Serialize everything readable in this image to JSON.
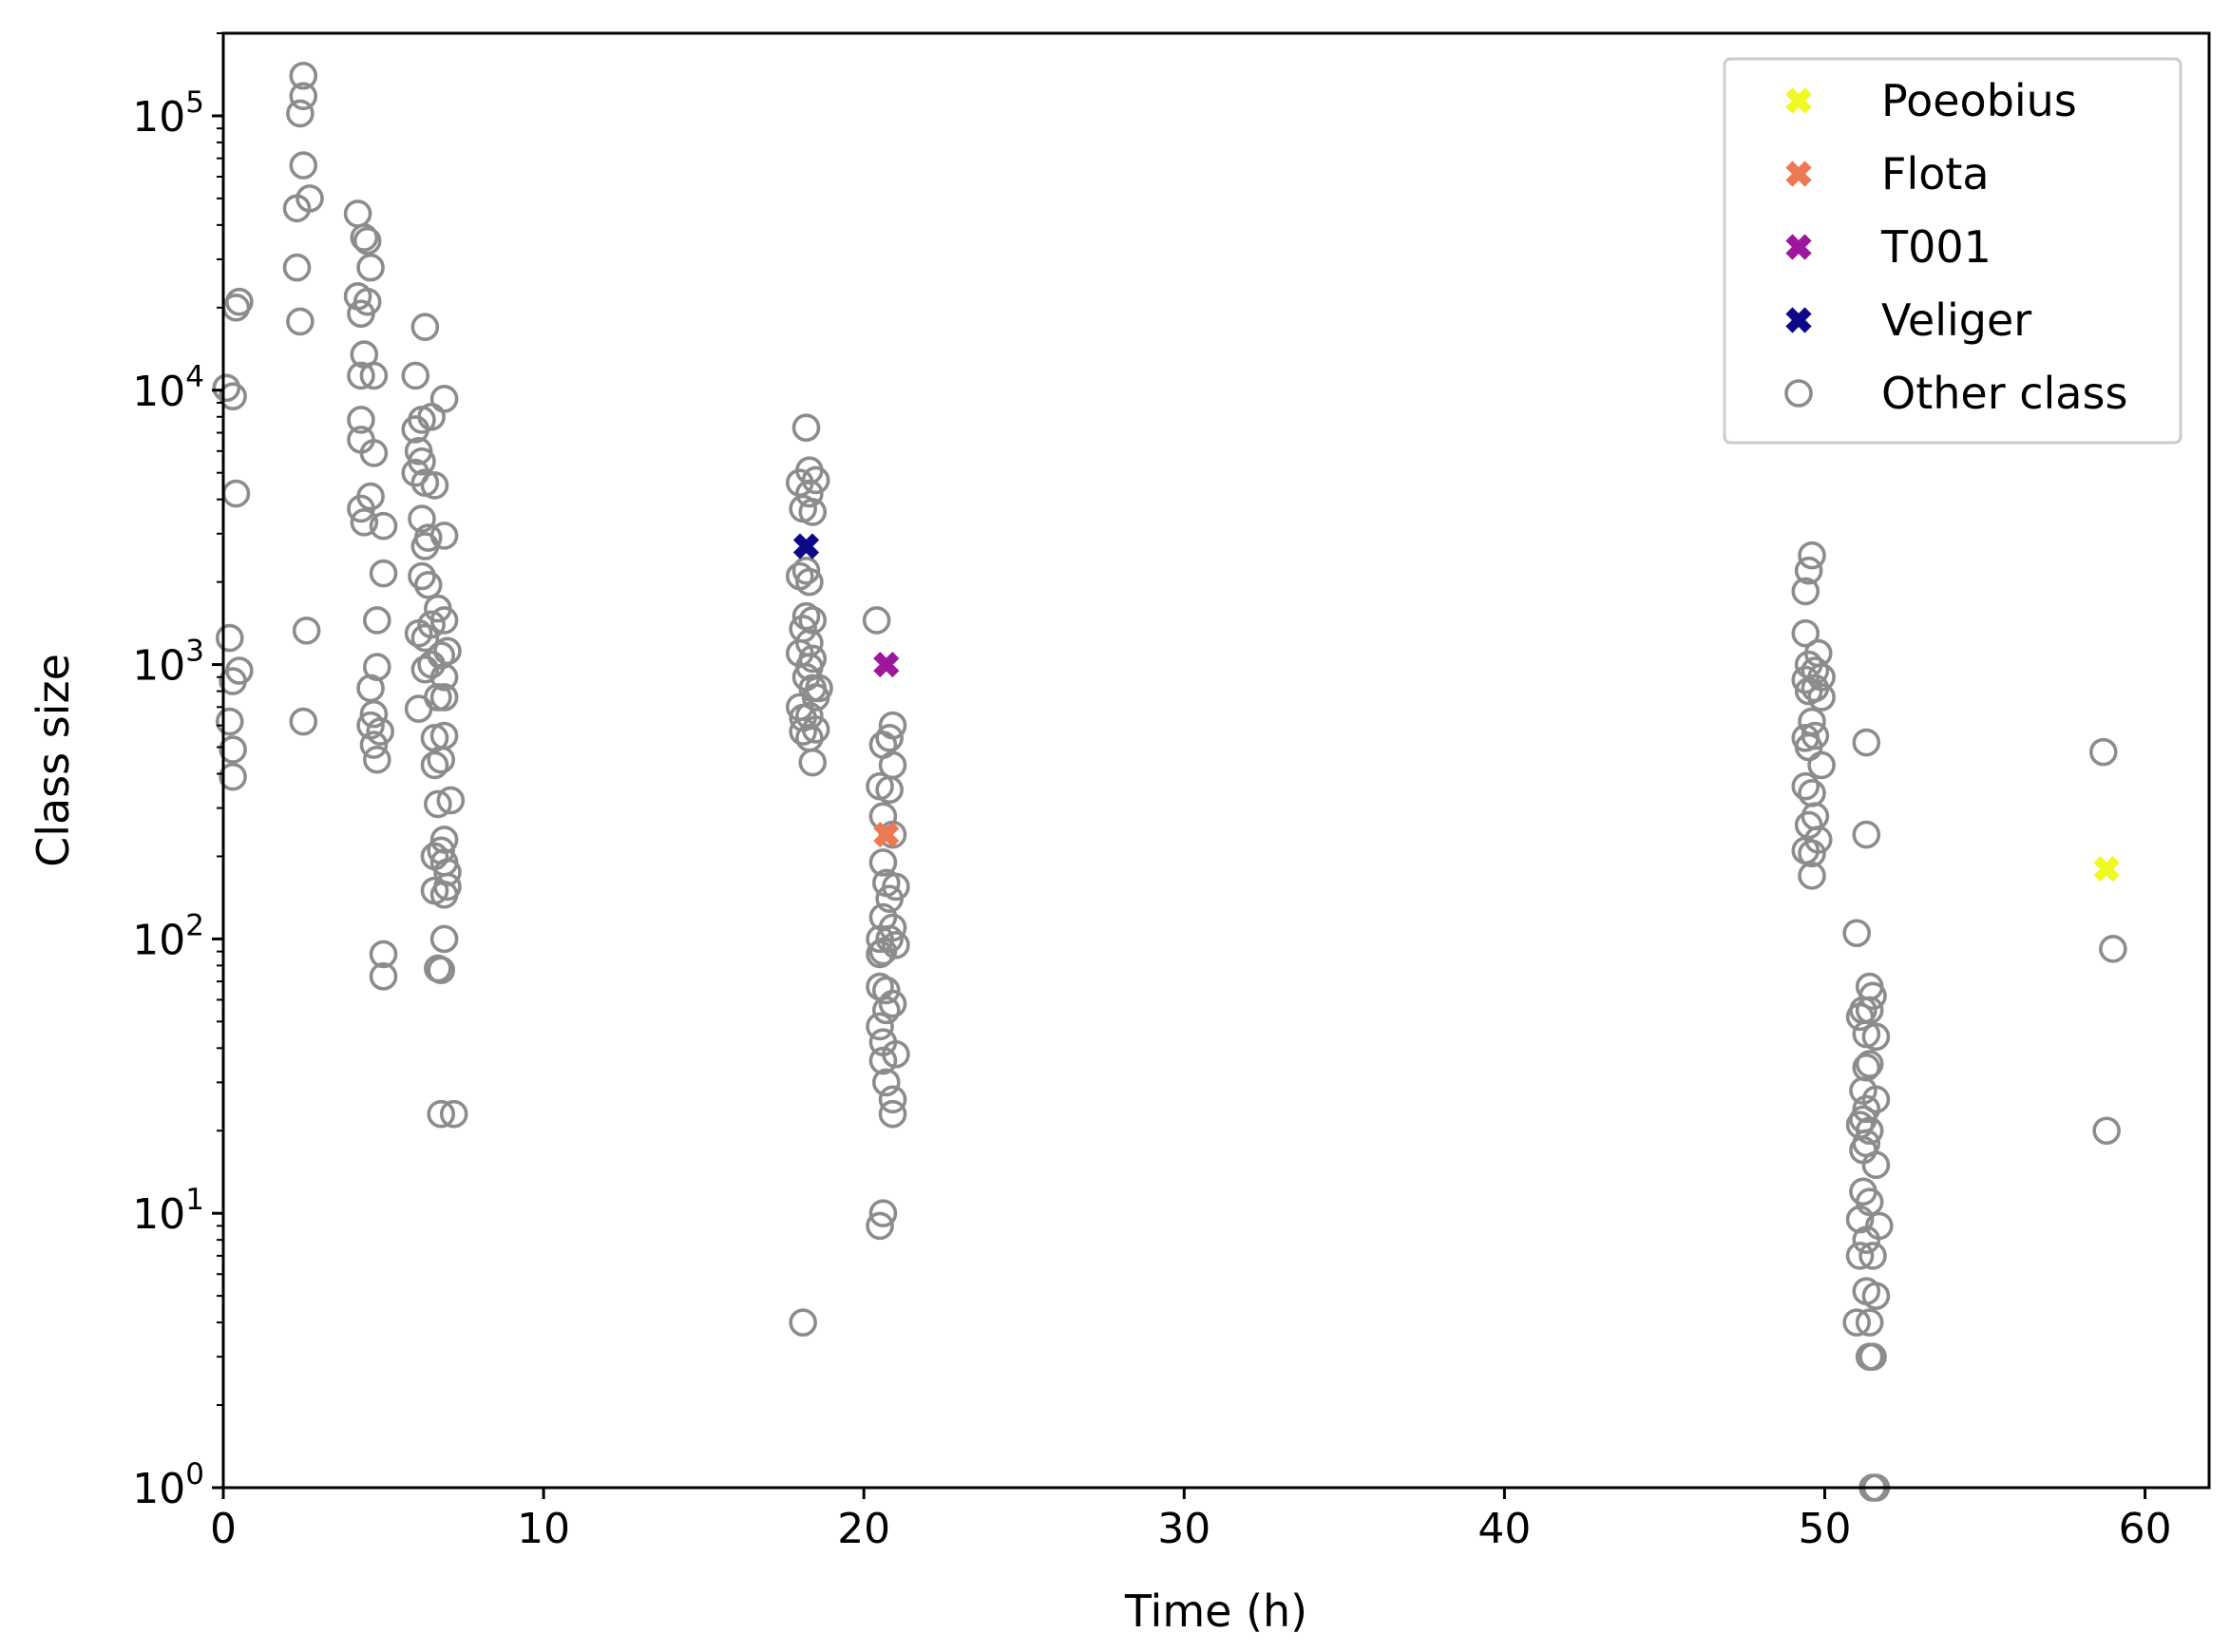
{
  "chart_data": {
    "type": "scatter",
    "xlabel": "Time (h)",
    "ylabel": "Class size",
    "xlim": [
      0,
      62
    ],
    "ylim": [
      1,
      200000
    ],
    "yscale": "log",
    "grid": false,
    "legend_position": "top-right",
    "x_ticks": [
      {
        "value": 0,
        "label": "0"
      },
      {
        "value": 10,
        "label": "10"
      },
      {
        "value": 20,
        "label": "20"
      },
      {
        "value": 30,
        "label": "30"
      },
      {
        "value": 40,
        "label": "40"
      },
      {
        "value": 50,
        "label": "50"
      },
      {
        "value": 60,
        "label": "60"
      }
    ],
    "y_ticks": [
      {
        "value": 1,
        "base": "10",
        "exp": "0"
      },
      {
        "value": 10,
        "base": "10",
        "exp": "1"
      },
      {
        "value": 100,
        "base": "10",
        "exp": "2"
      },
      {
        "value": 1000,
        "base": "10",
        "exp": "3"
      },
      {
        "value": 10000,
        "base": "10",
        "exp": "4"
      },
      {
        "value": 100000,
        "base": "10",
        "exp": "5"
      }
    ],
    "series": [
      {
        "name": "Poeobius",
        "marker": "x-filled",
        "color": "#f0f921",
        "points": [
          [
            58.8,
            180
          ]
        ]
      },
      {
        "name": "Flota",
        "marker": "x-filled",
        "color": "#ed7953",
        "points": [
          [
            20.7,
            240
          ]
        ]
      },
      {
        "name": "T001",
        "marker": "x-filled",
        "color": "#9c179e",
        "points": [
          [
            20.7,
            1000
          ]
        ]
      },
      {
        "name": "Veliger",
        "marker": "x-filled",
        "color": "#0d0887",
        "points": [
          [
            18.2,
            2700
          ]
        ]
      },
      {
        "name": "Other class",
        "marker": "circle-open",
        "color": "#8c8c8c",
        "points": [
          [
            0.1,
            10200
          ],
          [
            0.3,
            9500
          ],
          [
            0.4,
            20000
          ],
          [
            0.5,
            21000
          ],
          [
            0.4,
            4200
          ],
          [
            0.2,
            1250
          ],
          [
            0.5,
            950
          ],
          [
            0.3,
            870
          ],
          [
            0.2,
            620
          ],
          [
            0.3,
            490
          ],
          [
            0.3,
            390
          ],
          [
            2.3,
            28000
          ],
          [
            2.3,
            46000
          ],
          [
            2.4,
            17800
          ],
          [
            2.4,
            102000
          ],
          [
            2.5,
            118000
          ],
          [
            2.5,
            140000
          ],
          [
            2.5,
            66000
          ],
          [
            2.7,
            50000
          ],
          [
            2.5,
            620
          ],
          [
            2.6,
            1330
          ],
          [
            4.2,
            44000
          ],
          [
            4.4,
            36000
          ],
          [
            4.5,
            35000
          ],
          [
            4.6,
            28000
          ],
          [
            4.2,
            22000
          ],
          [
            4.5,
            21000
          ],
          [
            4.3,
            19000
          ],
          [
            4.4,
            13500
          ],
          [
            4.3,
            11300
          ],
          [
            4.7,
            11300
          ],
          [
            4.3,
            7800
          ],
          [
            4.3,
            6600
          ],
          [
            4.7,
            5900
          ],
          [
            4.3,
            3700
          ],
          [
            4.4,
            3300
          ],
          [
            4.6,
            4100
          ],
          [
            5.0,
            3200
          ],
          [
            5.0,
            2150
          ],
          [
            4.8,
            1450
          ],
          [
            4.8,
            980
          ],
          [
            4.6,
            820
          ],
          [
            4.7,
            660
          ],
          [
            4.6,
            600
          ],
          [
            4.9,
            570
          ],
          [
            4.7,
            510
          ],
          [
            4.8,
            450
          ],
          [
            5.0,
            88
          ],
          [
            5.0,
            73
          ],
          [
            6.0,
            11300
          ],
          [
            6.3,
            17000
          ],
          [
            6.0,
            7200
          ],
          [
            6.2,
            7800
          ],
          [
            6.5,
            8000
          ],
          [
            6.1,
            6000
          ],
          [
            6.2,
            5500
          ],
          [
            6.0,
            5000
          ],
          [
            6.3,
            4600
          ],
          [
            6.6,
            4500
          ],
          [
            6.2,
            3400
          ],
          [
            6.4,
            2900
          ],
          [
            6.3,
            2700
          ],
          [
            6.2,
            2100
          ],
          [
            6.4,
            1950
          ],
          [
            6.1,
            1300
          ],
          [
            6.3,
            1250
          ],
          [
            6.5,
            1400
          ],
          [
            6.7,
            1600
          ],
          [
            6.9,
            1450
          ],
          [
            6.3,
            960
          ],
          [
            6.5,
            1000
          ],
          [
            6.8,
            1080
          ],
          [
            7.0,
            1120
          ],
          [
            6.9,
            900
          ],
          [
            6.1,
            690
          ],
          [
            6.7,
            760
          ],
          [
            6.9,
            760
          ],
          [
            6.6,
            540
          ],
          [
            6.9,
            550
          ],
          [
            6.6,
            430
          ],
          [
            6.8,
            450
          ],
          [
            6.7,
            310
          ],
          [
            7.1,
            320
          ],
          [
            6.9,
            2950
          ],
          [
            6.9,
            9300
          ],
          [
            6.9,
            230
          ],
          [
            6.8,
            210
          ],
          [
            6.6,
            200
          ],
          [
            6.9,
            190
          ],
          [
            7.0,
            175
          ],
          [
            6.6,
            150
          ],
          [
            6.9,
            145
          ],
          [
            7.0,
            155
          ],
          [
            6.9,
            100
          ],
          [
            6.7,
            78
          ],
          [
            6.8,
            77
          ],
          [
            6.8,
            23
          ],
          [
            7.2,
            23
          ],
          [
            18.2,
            7300
          ],
          [
            18.0,
            4600
          ],
          [
            18.3,
            5100
          ],
          [
            18.5,
            4700
          ],
          [
            18.3,
            4200
          ],
          [
            18.1,
            3700
          ],
          [
            18.4,
            3600
          ],
          [
            18.0,
            2100
          ],
          [
            18.2,
            2200
          ],
          [
            18.3,
            2000
          ],
          [
            18.2,
            1500
          ],
          [
            18.4,
            1450
          ],
          [
            18.1,
            1350
          ],
          [
            18.3,
            1200
          ],
          [
            18.0,
            1100
          ],
          [
            18.4,
            1050
          ],
          [
            18.3,
            980
          ],
          [
            18.2,
            900
          ],
          [
            18.4,
            820
          ],
          [
            18.6,
            820
          ],
          [
            18.0,
            700
          ],
          [
            18.1,
            640
          ],
          [
            18.3,
            650
          ],
          [
            18.5,
            760
          ],
          [
            18.1,
            570
          ],
          [
            18.3,
            540
          ],
          [
            18.5,
            580
          ],
          [
            18.4,
            440
          ],
          [
            18.1,
            4
          ],
          [
            20.4,
            1450
          ],
          [
            20.9,
            600
          ],
          [
            20.8,
            540
          ],
          [
            20.6,
            510
          ],
          [
            20.9,
            430
          ],
          [
            20.5,
            360
          ],
          [
            20.8,
            350
          ],
          [
            20.6,
            280
          ],
          [
            20.9,
            240
          ],
          [
            20.6,
            190
          ],
          [
            20.7,
            160
          ],
          [
            21.0,
            155
          ],
          [
            20.8,
            140
          ],
          [
            20.6,
            120
          ],
          [
            20.9,
            110
          ],
          [
            20.5,
            100
          ],
          [
            20.8,
            100
          ],
          [
            21.0,
            95
          ],
          [
            20.6,
            90
          ],
          [
            20.5,
            88
          ],
          [
            20.7,
            65
          ],
          [
            20.5,
            67
          ],
          [
            20.9,
            58
          ],
          [
            20.7,
            55
          ],
          [
            20.5,
            48
          ],
          [
            20.6,
            42
          ],
          [
            21.0,
            38
          ],
          [
            20.6,
            36
          ],
          [
            20.7,
            30
          ],
          [
            20.9,
            26
          ],
          [
            20.9,
            23
          ],
          [
            20.6,
            10
          ],
          [
            20.5,
            9
          ],
          [
            49.6,
            2500
          ],
          [
            49.5,
            2200
          ],
          [
            49.4,
            1850
          ],
          [
            49.4,
            1300
          ],
          [
            49.8,
            1100
          ],
          [
            49.5,
            1000
          ],
          [
            49.7,
            950
          ],
          [
            49.4,
            880
          ],
          [
            49.9,
            900
          ],
          [
            49.5,
            800
          ],
          [
            49.7,
            820
          ],
          [
            49.9,
            760
          ],
          [
            49.6,
            620
          ],
          [
            49.4,
            540
          ],
          [
            49.7,
            550
          ],
          [
            49.5,
            500
          ],
          [
            49.9,
            430
          ],
          [
            49.4,
            360
          ],
          [
            49.6,
            340
          ],
          [
            49.7,
            280
          ],
          [
            49.5,
            260
          ],
          [
            49.8,
            230
          ],
          [
            49.4,
            210
          ],
          [
            49.6,
            205
          ],
          [
            49.6,
            170
          ],
          [
            51.3,
            520
          ],
          [
            51.3,
            240
          ],
          [
            51.0,
            105
          ],
          [
            51.4,
            67
          ],
          [
            51.5,
            62
          ],
          [
            51.2,
            55
          ],
          [
            51.4,
            55
          ],
          [
            51.1,
            52
          ],
          [
            51.3,
            45
          ],
          [
            51.6,
            44
          ],
          [
            51.4,
            35
          ],
          [
            51.3,
            34
          ],
          [
            51.2,
            28
          ],
          [
            51.6,
            26
          ],
          [
            51.3,
            24
          ],
          [
            51.2,
            22
          ],
          [
            51.1,
            21
          ],
          [
            51.4,
            20
          ],
          [
            51.3,
            18
          ],
          [
            51.2,
            17
          ],
          [
            51.6,
            15
          ],
          [
            51.2,
            12
          ],
          [
            51.4,
            11
          ],
          [
            51.1,
            9.5
          ],
          [
            51.7,
            9
          ],
          [
            51.3,
            8
          ],
          [
            51.1,
            7
          ],
          [
            51.5,
            7
          ],
          [
            51.3,
            5.2
          ],
          [
            51.6,
            5
          ],
          [
            51.0,
            4
          ],
          [
            51.4,
            4
          ],
          [
            51.4,
            3
          ],
          [
            51.5,
            3
          ],
          [
            51.5,
            1
          ],
          [
            51.6,
            1
          ],
          [
            58.7,
            480
          ],
          [
            59.0,
            92
          ],
          [
            58.8,
            20
          ]
        ]
      }
    ]
  }
}
